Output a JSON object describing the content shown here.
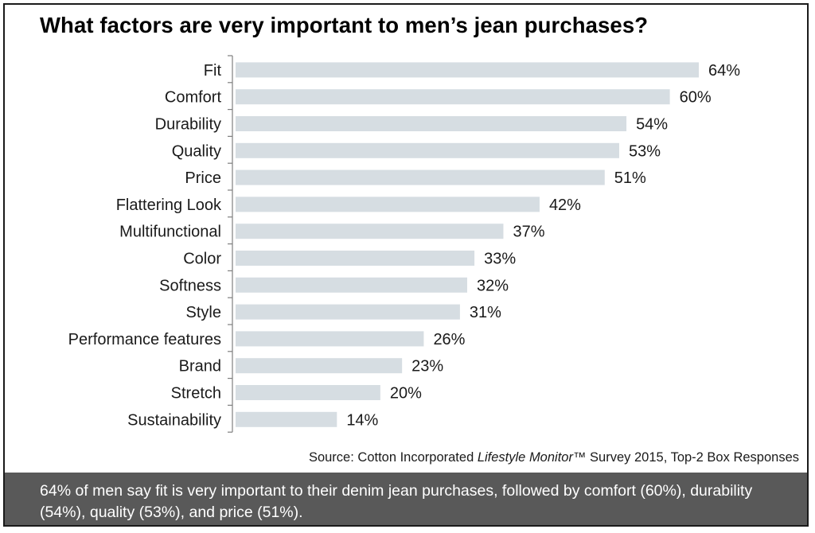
{
  "chart_data": {
    "type": "bar",
    "orientation": "horizontal",
    "title": "What factors are very important to men’s jean purchases?",
    "categories": [
      "Fit",
      "Comfort",
      "Durability",
      "Quality",
      "Price",
      "Flattering Look",
      "Multifunctional",
      "Color",
      "Softness",
      "Style",
      "Performance features",
      "Brand",
      "Stretch",
      "Sustainability"
    ],
    "values": [
      64,
      60,
      54,
      53,
      51,
      42,
      37,
      33,
      32,
      31,
      26,
      23,
      20,
      14
    ],
    "value_labels": [
      "64%",
      "60%",
      "54%",
      "53%",
      "51%",
      "42%",
      "37%",
      "33%",
      "32%",
      "31%",
      "26%",
      "23%",
      "20%",
      "14%"
    ],
    "unit": "%",
    "xlabel": "",
    "ylabel": "",
    "xlim": [
      0,
      64
    ],
    "grid": false,
    "legend": "none",
    "bar_color": "#d6dde2"
  },
  "source": {
    "prefix": "Source: Cotton Incorporated ",
    "italic": "Lifestyle Monitor",
    "suffix": "™ Survey 2015, Top-2 Box Responses"
  },
  "caption": {
    "text": "64% of men say fit is very important to their denim jean purchases, followed by comfort (60%), durability (54%), quality (53%), and price (51%).",
    "background": "#595959"
  }
}
